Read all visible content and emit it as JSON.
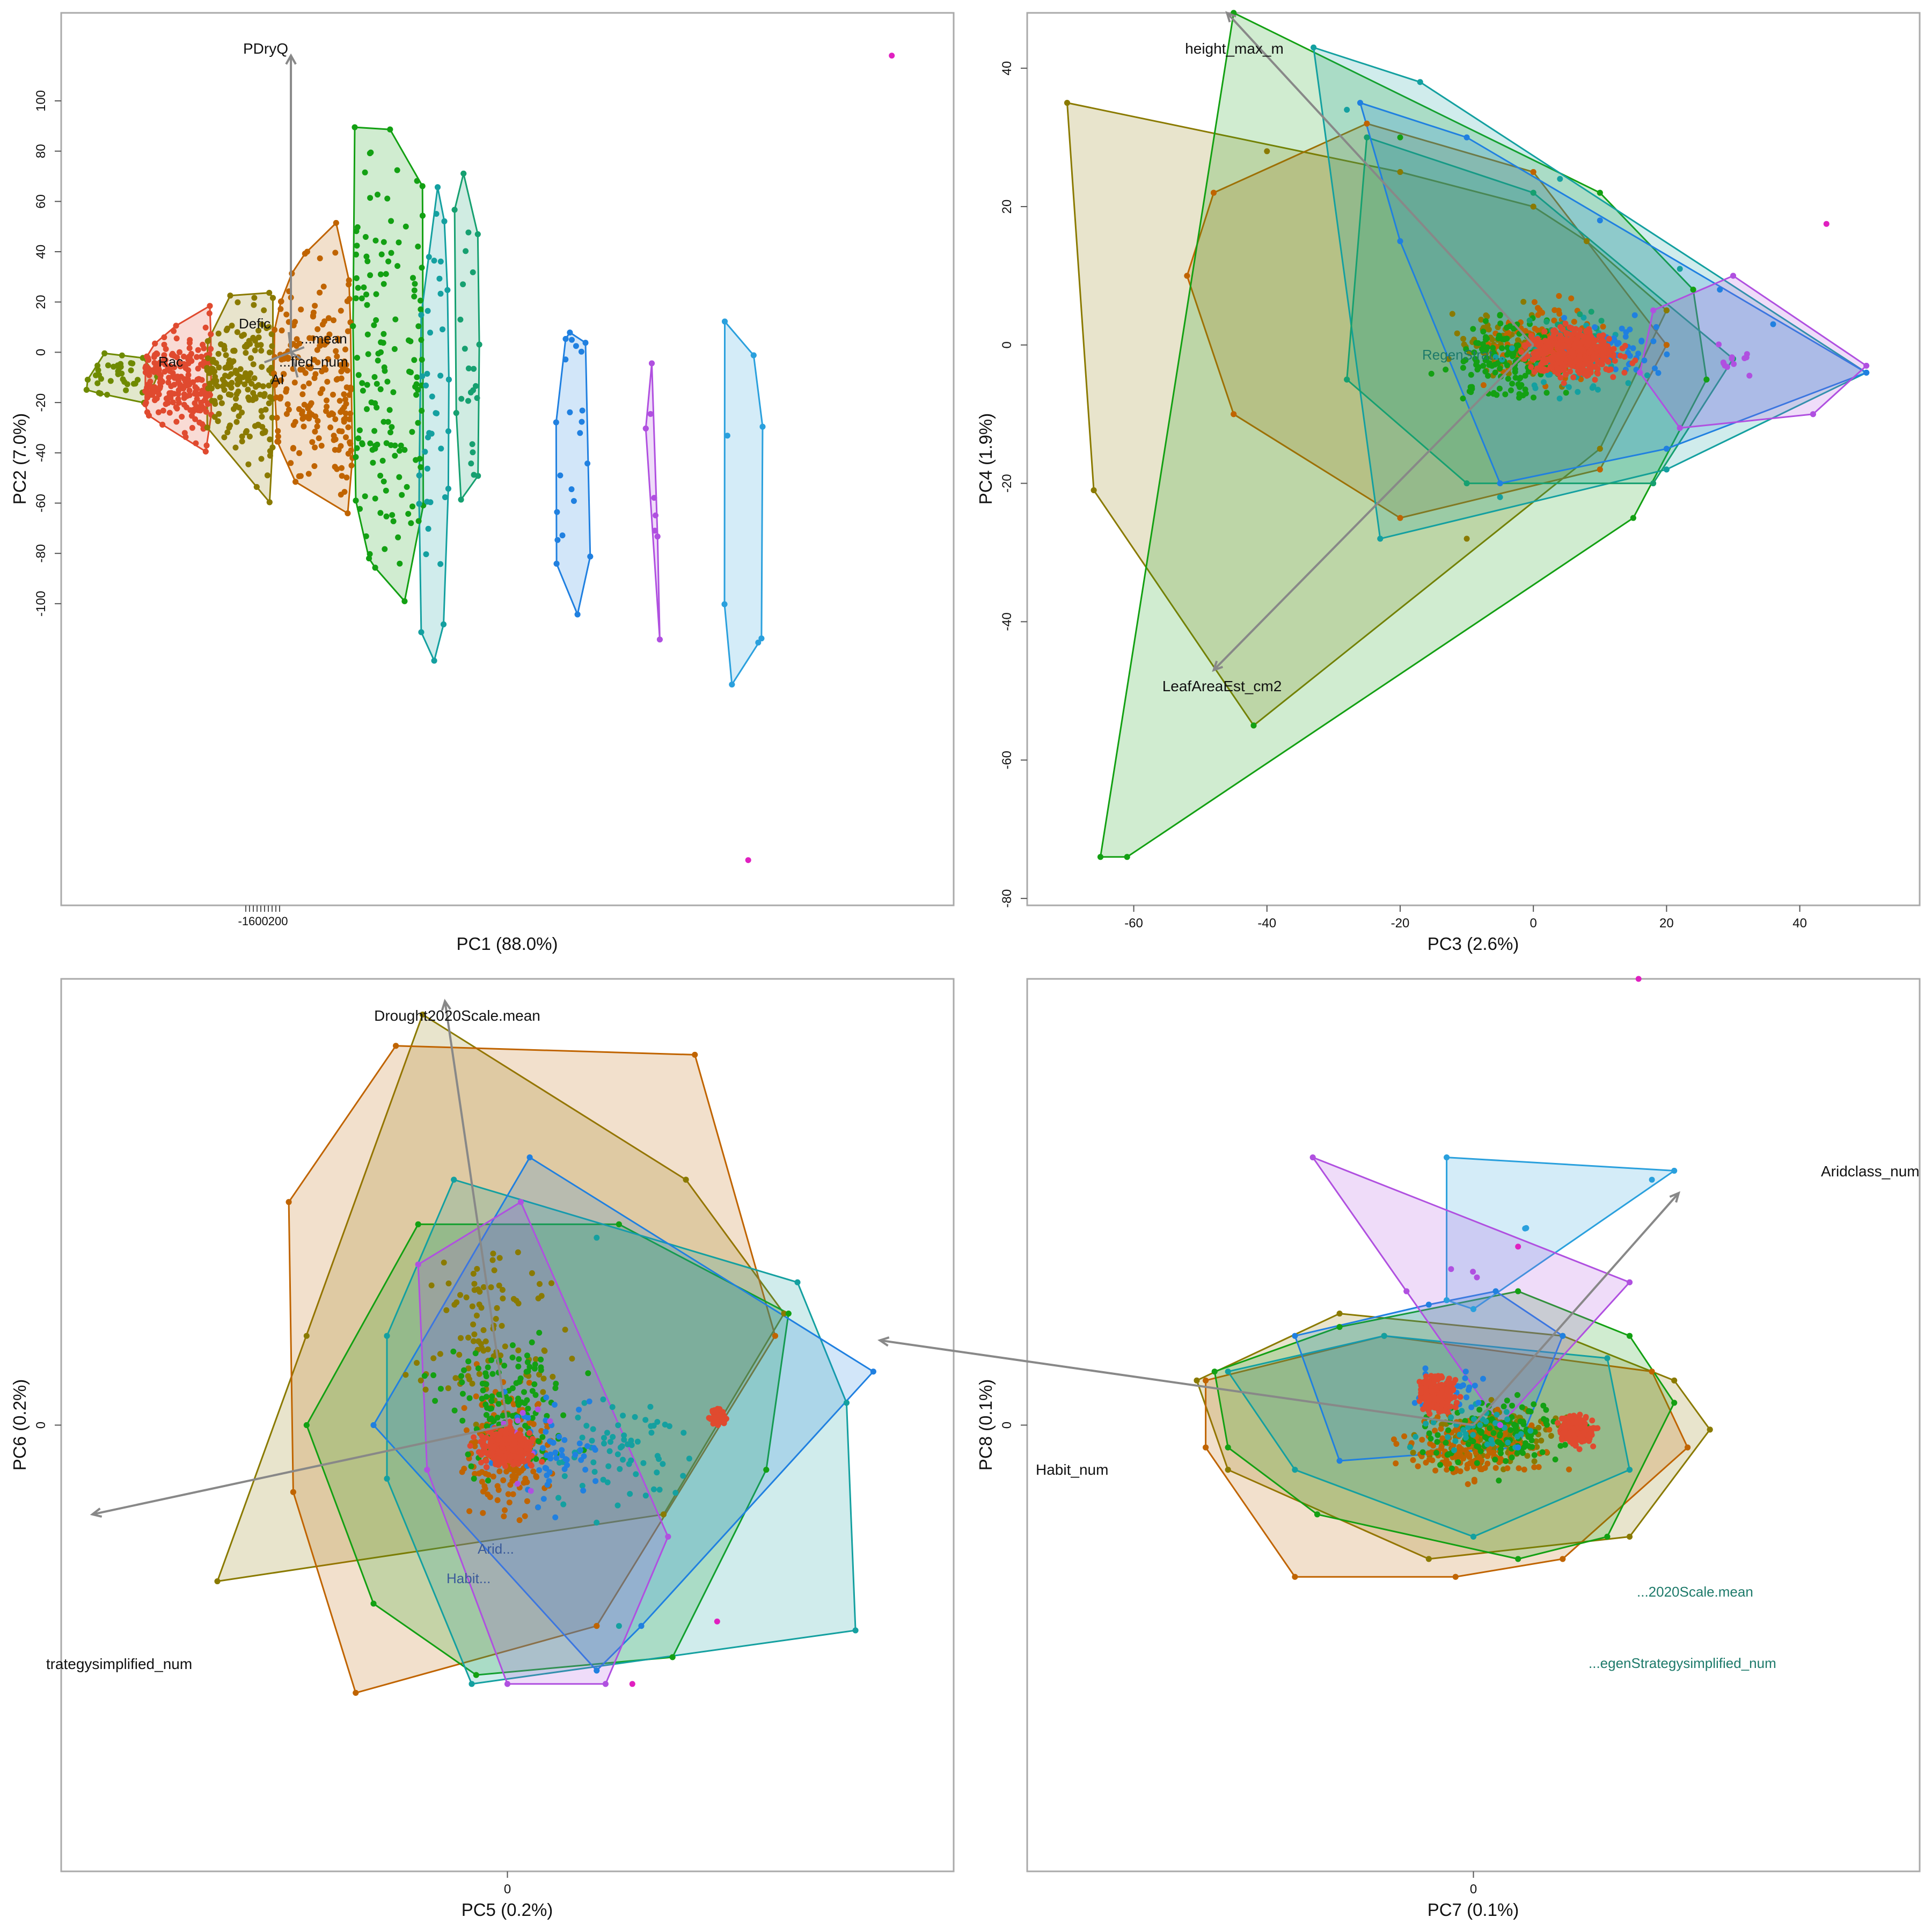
{
  "chart_data": [
    {
      "type": "scatter",
      "panel": "top-left",
      "xlabel": "PC1 (88.0%)",
      "ylabel": "PC2 (7.0%)",
      "xlim": [
        -520,
        1500
      ],
      "ylim": [
        -220,
        135
      ],
      "xticks": [],
      "yticks": [
        100,
        80,
        60,
        40,
        20,
        0,
        -20,
        -40,
        -60,
        -80,
        -100
      ],
      "crowded_x_ticklabel": "-1600200",
      "groups": [
        {
          "name": "olive-green",
          "color": "#6e8a00",
          "x": [
            -480,
            -300
          ],
          "y": [
            -30,
            10
          ]
        },
        {
          "name": "red",
          "color": "#e04a2f",
          "x": [
            -330,
            -180
          ],
          "y": [
            -50,
            28
          ]
        },
        {
          "name": "olive",
          "color": "#8a7a00",
          "x": [
            -190,
            -40
          ],
          "y": [
            -70,
            48
          ]
        },
        {
          "name": "brown-orange",
          "color": "#c06400",
          "x": [
            -40,
            140
          ],
          "y": [
            -105,
            80
          ]
        },
        {
          "name": "green",
          "color": "#13a013",
          "x": [
            140,
            300
          ],
          "y": [
            -125,
            110
          ]
        },
        {
          "name": "teal",
          "color": "#14a0a0",
          "x": [
            290,
            360
          ],
          "y": [
            -150,
            105
          ]
        },
        {
          "name": "teal-green",
          "color": "#16a070",
          "x": [
            370,
            430
          ],
          "y": [
            -100,
            95
          ]
        },
        {
          "name": "blue",
          "color": "#2080e0",
          "x": [
            600,
            680
          ],
          "y": [
            -145,
            100
          ]
        },
        {
          "name": "violet",
          "color": "#b050e0",
          "x": [
            800,
            840
          ],
          "y": [
            -185,
            108
          ]
        },
        {
          "name": "sky-blue",
          "color": "#2aa0dd",
          "x": [
            960,
            1080
          ],
          "y": [
            -195,
            85
          ]
        },
        {
          "name": "magenta",
          "color": "#e020c0",
          "x": [
            1040,
            1380
          ],
          "y": [
            -205,
            118
          ]
        }
      ],
      "loadings": [
        {
          "label": "PDryQ",
          "x": 0,
          "y": 118
        },
        {
          "label": "Rac",
          "x": -60,
          "y": -4
        },
        {
          "label": "AI",
          "x": 15,
          "y": -10
        },
        {
          "label": "...mean",
          "x": 30,
          "y": 2
        },
        {
          "label": "...fied_num",
          "x": 25,
          "y": -3
        },
        {
          "label": "Defic",
          "x": -5,
          "y": 8
        }
      ]
    },
    {
      "type": "scatter",
      "panel": "top-right",
      "xlabel": "PC3 (2.6%)",
      "ylabel": "PC4 (1.9%)",
      "xlim": [
        -76,
        58
      ],
      "ylim": [
        -81,
        48
      ],
      "xticks": [
        -60,
        -40,
        -20,
        0,
        20,
        40
      ],
      "yticks": [
        40,
        20,
        0,
        -20,
        -40,
        -60,
        -80
      ],
      "groups": [
        {
          "name": "olive",
          "color": "#8a7a00"
        },
        {
          "name": "brown-orange",
          "color": "#c06400"
        },
        {
          "name": "green",
          "color": "#13a013"
        },
        {
          "name": "teal",
          "color": "#14a0a0"
        },
        {
          "name": "teal-green",
          "color": "#16a070"
        },
        {
          "name": "blue",
          "color": "#2080e0"
        },
        {
          "name": "violet",
          "color": "#b050e0"
        },
        {
          "name": "red",
          "color": "#e04a2f"
        },
        {
          "name": "magenta",
          "color": "#e020c0"
        }
      ],
      "loadings": [
        {
          "label": "height_max_m",
          "x": -46,
          "y": 48
        },
        {
          "label": "LeafAreaEst_cm2",
          "x": -48,
          "y": -47
        },
        {
          "label": "RegenStrat...",
          "x": -18,
          "y": 2
        }
      ]
    },
    {
      "type": "scatter",
      "panel": "bottom-left",
      "xlabel": "PC5 (0.2%)",
      "ylabel": "PC6 (0.2%)",
      "xlim": [
        -1,
        1
      ],
      "ylim": [
        -1,
        1
      ],
      "xticks": [
        0
      ],
      "yticks": [
        0
      ],
      "groups": [
        {
          "name": "olive",
          "color": "#8a7a00"
        },
        {
          "name": "brown-orange",
          "color": "#c06400"
        },
        {
          "name": "green",
          "color": "#13a013"
        },
        {
          "name": "teal",
          "color": "#14a0a0"
        },
        {
          "name": "blue",
          "color": "#2080e0"
        },
        {
          "name": "violet",
          "color": "#b050e0"
        },
        {
          "name": "red",
          "color": "#e04a2f"
        },
        {
          "name": "magenta",
          "color": "#e020c0"
        }
      ],
      "loadings": [
        {
          "label": "Drought2020Scale.mean",
          "x": -0.14,
          "y": 0.95
        },
        {
          "label": "trategysimplified_num",
          "x": -0.93,
          "y": -0.2
        },
        {
          "label": "Habit...",
          "x": -0.12,
          "y": 0.0
        },
        {
          "label": "Arid...",
          "x": -0.08,
          "y": 0.04
        }
      ]
    },
    {
      "type": "scatter",
      "panel": "bottom-right",
      "xlabel": "PC7 (0.1%)",
      "ylabel": "PC8 (0.1%)",
      "xlim": [
        -1,
        1
      ],
      "ylim": [
        -1,
        1
      ],
      "xticks": [
        0
      ],
      "yticks": [
        0
      ],
      "groups": [
        {
          "name": "olive",
          "color": "#8a7a00"
        },
        {
          "name": "brown-orange",
          "color": "#c06400"
        },
        {
          "name": "green",
          "color": "#13a013"
        },
        {
          "name": "teal",
          "color": "#14a0a0"
        },
        {
          "name": "blue",
          "color": "#2080e0"
        },
        {
          "name": "sky-blue",
          "color": "#2aa0dd"
        },
        {
          "name": "violet",
          "color": "#b050e0"
        },
        {
          "name": "red",
          "color": "#e04a2f"
        },
        {
          "name": "magenta",
          "color": "#e020c0"
        }
      ],
      "loadings": [
        {
          "label": "Aridclass_num",
          "x": 0.46,
          "y": 0.52
        },
        {
          "label": "Habit_num",
          "x": -1.33,
          "y": 0.19
        },
        {
          "label": "...2020Scale.mean",
          "x": 0.04,
          "y": 0.06
        },
        {
          "label": "...egenStrategysimplified_num",
          "x": 0.0,
          "y": -0.03
        }
      ]
    }
  ]
}
